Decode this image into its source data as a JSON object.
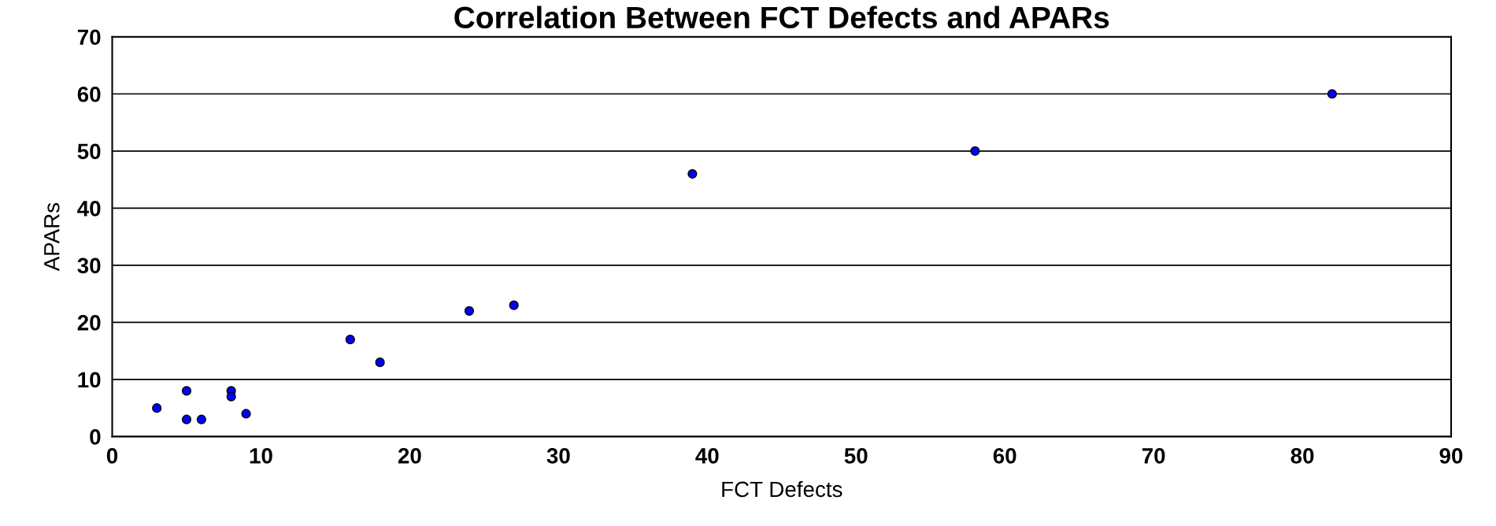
{
  "chart_data": {
    "type": "scatter",
    "title": "Correlation Between FCT Defects and APARs",
    "xlabel": "FCT Defects",
    "ylabel": "APARs",
    "x": [
      3,
      5,
      5,
      6,
      8,
      8,
      9,
      16,
      18,
      24,
      27,
      39,
      58,
      82
    ],
    "series": [
      {
        "color": "#0000ff",
        "values": [
          5,
          8,
          3,
          3,
          8,
          7,
          4,
          17,
          13,
          22,
          23,
          46,
          50,
          60
        ]
      }
    ],
    "xlim": [
      0,
      90
    ],
    "xticks": [
      0,
      10,
      20,
      30,
      40,
      50,
      60,
      70,
      80,
      90
    ],
    "ylim": [
      0,
      70
    ],
    "yticks": [
      0,
      10,
      20,
      30,
      40,
      50,
      60,
      70
    ],
    "grid": "y",
    "marker": "circle",
    "legend": false
  }
}
